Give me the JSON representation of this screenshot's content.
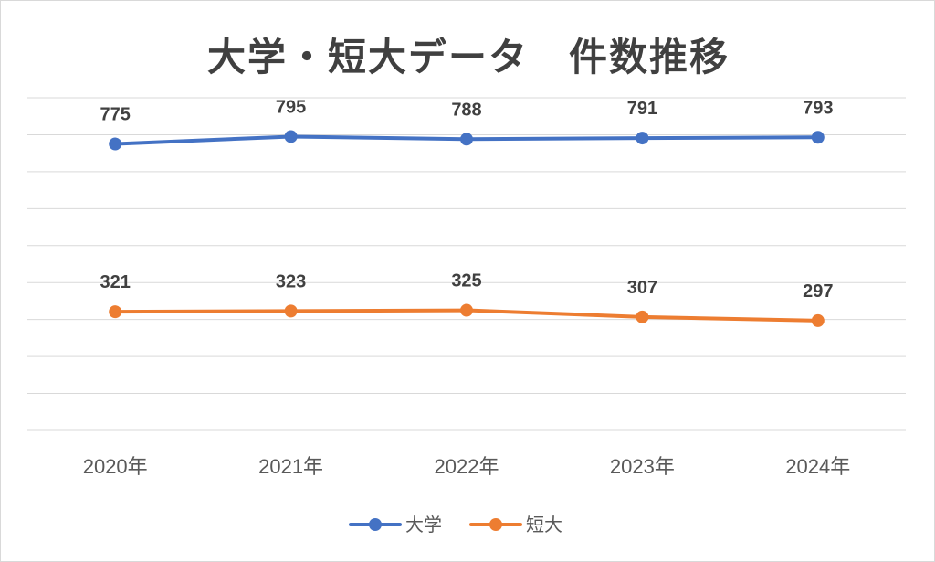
{
  "chart_data": {
    "type": "line",
    "title": "大学・短大データ　件数推移",
    "categories": [
      "2020年",
      "2021年",
      "2022年",
      "2023年",
      "2024年"
    ],
    "series": [
      {
        "name": "大学",
        "values": [
          775,
          795,
          788,
          791,
          793
        ],
        "color": "#4472C4"
      },
      {
        "name": "短大",
        "values": [
          321,
          323,
          325,
          307,
          297
        ],
        "color": "#ED7D31"
      }
    ],
    "ylim": [
      0,
      900
    ],
    "grid": true,
    "legend": "bottom",
    "data_labels": true
  }
}
